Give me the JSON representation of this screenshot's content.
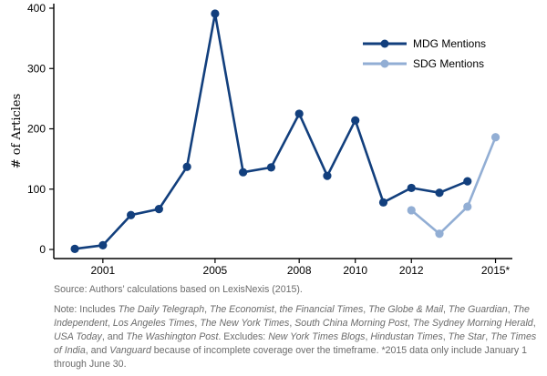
{
  "chart_data": {
    "type": "line",
    "ylabel": "# of Articles",
    "xlabel": "",
    "xlim": [
      1999.25,
      2015.6
    ],
    "ylim": [
      0,
      400
    ],
    "yticks": [
      0,
      100,
      200,
      300,
      400
    ],
    "xticks": [
      {
        "value": 2001,
        "label": "2001"
      },
      {
        "value": 2005,
        "label": "2005"
      },
      {
        "value": 2008,
        "label": "2008"
      },
      {
        "value": 2010,
        "label": "2010"
      },
      {
        "value": 2012,
        "label": "2012"
      },
      {
        "value": 2015,
        "label": "2015*"
      }
    ],
    "legend_position": "top-right",
    "series": [
      {
        "name": "MDG Mentions",
        "color": "#123f7d",
        "points": [
          {
            "x": 2000,
            "y": 1
          },
          {
            "x": 2001,
            "y": 7
          },
          {
            "x": 2002,
            "y": 57
          },
          {
            "x": 2003,
            "y": 67
          },
          {
            "x": 2004,
            "y": 137
          },
          {
            "x": 2005,
            "y": 391
          },
          {
            "x": 2006,
            "y": 128
          },
          {
            "x": 2007,
            "y": 136
          },
          {
            "x": 2008,
            "y": 225
          },
          {
            "x": 2009,
            "y": 122
          },
          {
            "x": 2010,
            "y": 214
          },
          {
            "x": 2011,
            "y": 78
          },
          {
            "x": 2012,
            "y": 102
          },
          {
            "x": 2013,
            "y": 94
          },
          {
            "x": 2014,
            "y": 113
          }
        ]
      },
      {
        "name": "SDG Mentions",
        "color": "#92aed4",
        "points": [
          {
            "x": 2012,
            "y": 65
          },
          {
            "x": 2013,
            "y": 26
          },
          {
            "x": 2014,
            "y": 71
          },
          {
            "x": 2015,
            "y": 186
          }
        ]
      }
    ]
  },
  "caption": {
    "source": "Source: Authors’ calculations based on LexisNexis (2015).",
    "note": [
      {
        "t": "Note: Includes ",
        "i": false
      },
      {
        "t": "The Daily Telegraph",
        "i": true
      },
      {
        "t": ", ",
        "i": false
      },
      {
        "t": "The Economist",
        "i": true
      },
      {
        "t": ", ",
        "i": false
      },
      {
        "t": "the Financial Times",
        "i": true
      },
      {
        "t": ", ",
        "i": false
      },
      {
        "t": "The Globe & Mail",
        "i": true
      },
      {
        "t": ", ",
        "i": false
      },
      {
        "t": "The Guardian",
        "i": true
      },
      {
        "t": ", ",
        "i": false
      },
      {
        "t": "The Independent",
        "i": true
      },
      {
        "t": ", ",
        "i": false
      },
      {
        "t": "Los Angeles Times",
        "i": true
      },
      {
        "t": ", ",
        "i": false
      },
      {
        "t": "The New York Times",
        "i": true
      },
      {
        "t": ", ",
        "i": false
      },
      {
        "t": "South China Morning Post",
        "i": true
      },
      {
        "t": ", ",
        "i": false
      },
      {
        "t": "The Sydney Morning Herald",
        "i": true
      },
      {
        "t": ", ",
        "i": false
      },
      {
        "t": "USA Today",
        "i": true
      },
      {
        "t": ", and ",
        "i": false
      },
      {
        "t": "The Washington Post",
        "i": true
      },
      {
        "t": ". Excludes: ",
        "i": false
      },
      {
        "t": "New York Times Blogs",
        "i": true
      },
      {
        "t": ", ",
        "i": false
      },
      {
        "t": "Hindustan Times",
        "i": true
      },
      {
        "t": ", ",
        "i": false
      },
      {
        "t": "The Star",
        "i": true
      },
      {
        "t": ", ",
        "i": false
      },
      {
        "t": "The Times of India",
        "i": true
      },
      {
        "t": ", and ",
        "i": false
      },
      {
        "t": "Vanguard",
        "i": true
      },
      {
        "t": " because of incomplete coverage over the timeframe. *2015 data only include January 1 through June 30.",
        "i": false
      }
    ]
  }
}
